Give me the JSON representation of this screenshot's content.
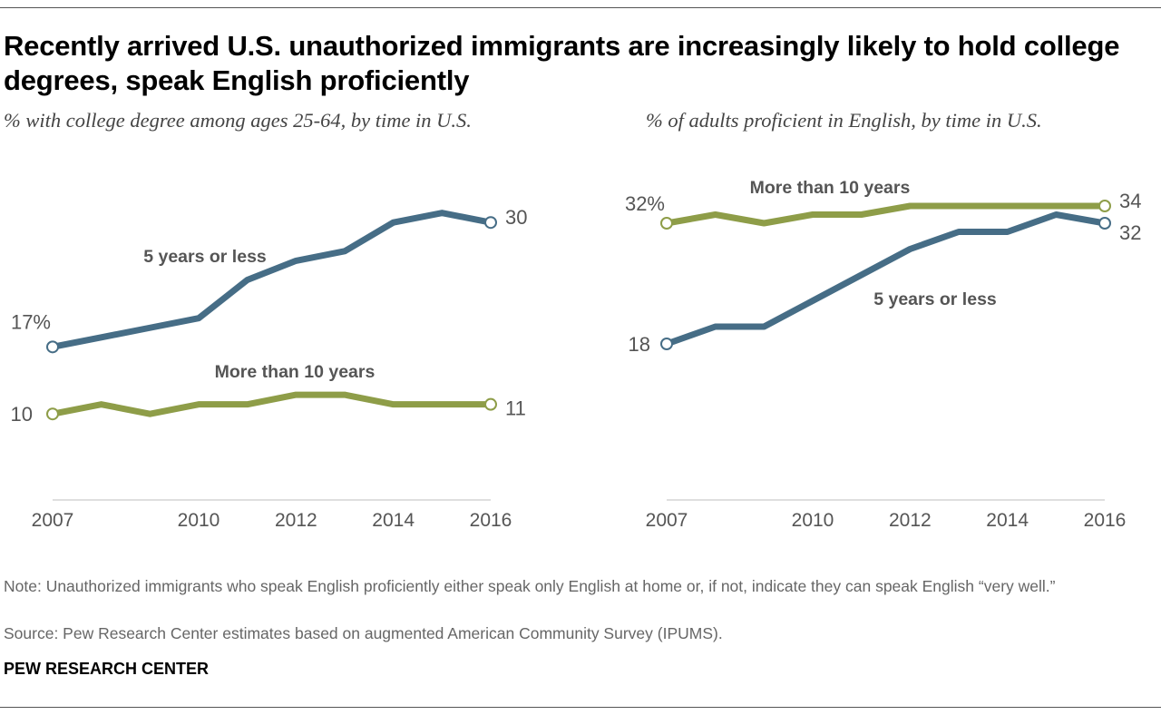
{
  "title": "Recently arrived U.S. unauthorized immigrants are increasingly likely to hold college degrees, speak English proficiently",
  "note": "Note: Unauthorized immigrants who speak English proficiently either speak only English at home or, if not, indicate they can speak English “very well.”",
  "source": "Source: Pew Research Center estimates based on augmented American Community Survey (IPUMS).",
  "brand": "PEW RESEARCH CENTER",
  "colors": {
    "blue": "#466d86",
    "green": "#8e9d48",
    "axis": "#cccccc",
    "text": "#555555"
  },
  "chart_data": [
    {
      "type": "line",
      "title": "% with college degree among ages 25-64, by time in U.S.",
      "x": [
        2007,
        2008,
        2009,
        2010,
        2011,
        2012,
        2013,
        2014,
        2015,
        2016
      ],
      "x_tick_labels": [
        "2007",
        "2010",
        "2012",
        "2014",
        "2016"
      ],
      "ylim": [
        0,
        40
      ],
      "grid": false,
      "series": [
        {
          "name": "5 years or less",
          "color": "#466d86",
          "values": [
            17,
            18,
            19,
            20,
            24,
            26,
            27,
            30,
            31,
            30
          ],
          "start_label": "17%",
          "end_label": "30"
        },
        {
          "name": "More than 10 years",
          "color": "#8e9d48",
          "values": [
            10,
            11,
            10,
            11,
            11,
            12,
            12,
            11,
            11,
            11
          ],
          "start_label": "10",
          "end_label": "11"
        }
      ]
    },
    {
      "type": "line",
      "title": "% of adults proficient in English, by time in U.S.",
      "x": [
        2007,
        2008,
        2009,
        2010,
        2011,
        2012,
        2013,
        2014,
        2015,
        2016
      ],
      "x_tick_labels": [
        "2007",
        "2010",
        "2012",
        "2014",
        "2016"
      ],
      "ylim": [
        0,
        40
      ],
      "grid": false,
      "series": [
        {
          "name": "More than 10 years",
          "color": "#8e9d48",
          "values": [
            32,
            33,
            32,
            33,
            33,
            34,
            34,
            34,
            34,
            34
          ],
          "start_label": "32%",
          "end_label": "34"
        },
        {
          "name": "5 years or less",
          "color": "#466d86",
          "values": [
            18,
            20,
            20,
            23,
            26,
            29,
            31,
            31,
            33,
            32
          ],
          "start_label": "18",
          "end_label": "32"
        }
      ]
    }
  ]
}
